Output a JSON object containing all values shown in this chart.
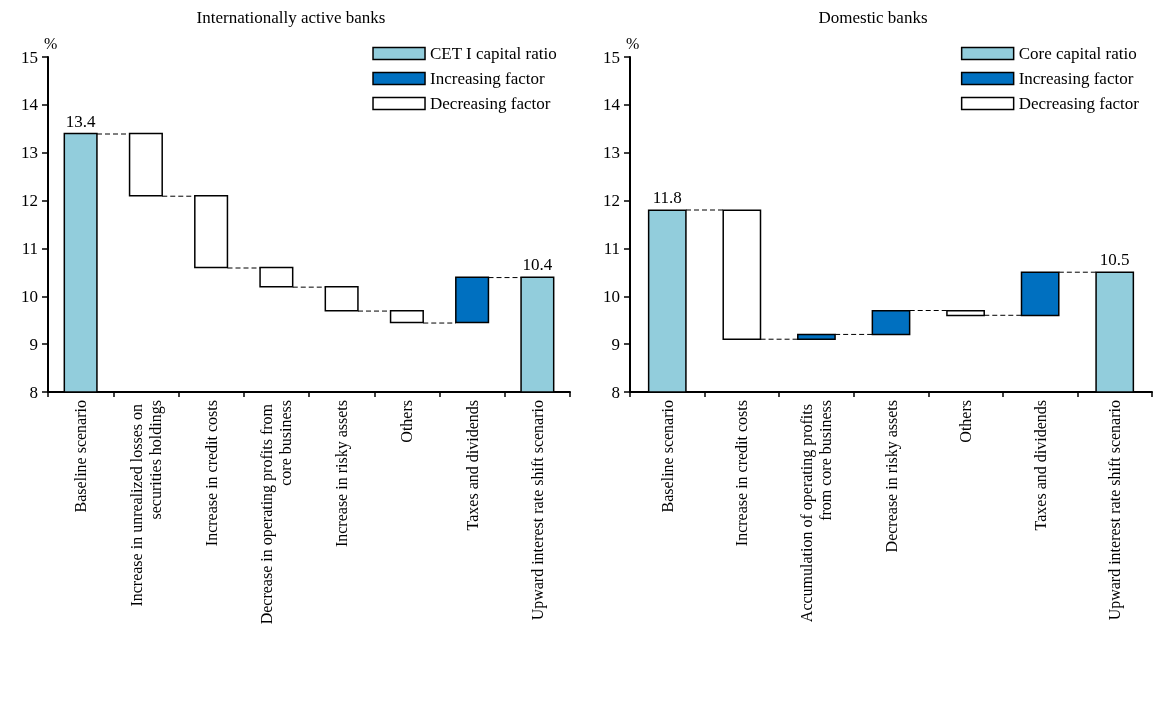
{
  "chart_data": [
    {
      "type": "bar",
      "title": "Internationally active banks",
      "ylabel": "%",
      "categories": [
        "Baseline scenario",
        "Increase in unrealized losses on securities holdings",
        "Increase in credit costs",
        "Decrease in operating profits from core business",
        "Increase in risky assets",
        "Others",
        "Taxes and dividends",
        "Upward interest rate shift scenario"
      ],
      "series": [
        {
          "name": "CET I capital ratio",
          "color": "#92cddc",
          "values": [
            13.4,
            null,
            null,
            null,
            null,
            null,
            null,
            10.4
          ],
          "value_labels": [
            "13.4",
            null,
            null,
            null,
            null,
            null,
            null,
            "10.4"
          ]
        },
        {
          "name": "Increasing factor",
          "color": "#0070c0",
          "values": [
            null,
            null,
            null,
            null,
            null,
            null,
            0.95,
            null
          ],
          "base": [
            null,
            null,
            null,
            null,
            null,
            null,
            9.45,
            null
          ]
        },
        {
          "name": "Decreasing factor",
          "color": "#ffffff",
          "values": [
            null,
            -1.3,
            -1.5,
            -0.4,
            -0.5,
            -0.25,
            null,
            null
          ],
          "base": [
            null,
            13.4,
            12.1,
            10.6,
            10.2,
            9.7,
            null,
            null
          ]
        }
      ],
      "ylim": [
        8,
        15
      ],
      "yticks": [
        8,
        9,
        10,
        11,
        12,
        13,
        14,
        15
      ],
      "legend": "top right",
      "grid": false
    },
    {
      "type": "bar",
      "title": "Domestic banks",
      "ylabel": "%",
      "categories": [
        "Baseline scenario",
        "Increase in credit costs",
        "Accumulation of operating profits from core business",
        "Decrease in risky assets",
        "Others",
        "Taxes and dividends",
        "Upward interest rate shift scenario"
      ],
      "series": [
        {
          "name": "Core capital ratio",
          "color": "#92cddc",
          "values": [
            11.8,
            null,
            null,
            null,
            null,
            null,
            10.5
          ],
          "value_labels": [
            "11.8",
            null,
            null,
            null,
            null,
            null,
            "10.5"
          ]
        },
        {
          "name": "Increasing factor",
          "color": "#0070c0",
          "values": [
            null,
            null,
            0.1,
            0.5,
            null,
            0.9,
            null
          ],
          "base": [
            null,
            null,
            9.1,
            9.2,
            null,
            9.6,
            null
          ]
        },
        {
          "name": "Decreasing factor",
          "color": "#ffffff",
          "values": [
            null,
            -2.7,
            null,
            null,
            -0.1,
            null,
            null
          ],
          "base": [
            null,
            11.8,
            null,
            null,
            9.7,
            null,
            null
          ]
        }
      ],
      "ylim": [
        8,
        15
      ],
      "yticks": [
        8,
        9,
        10,
        11,
        12,
        13,
        14,
        15
      ],
      "legend": "top right",
      "grid": false
    }
  ]
}
